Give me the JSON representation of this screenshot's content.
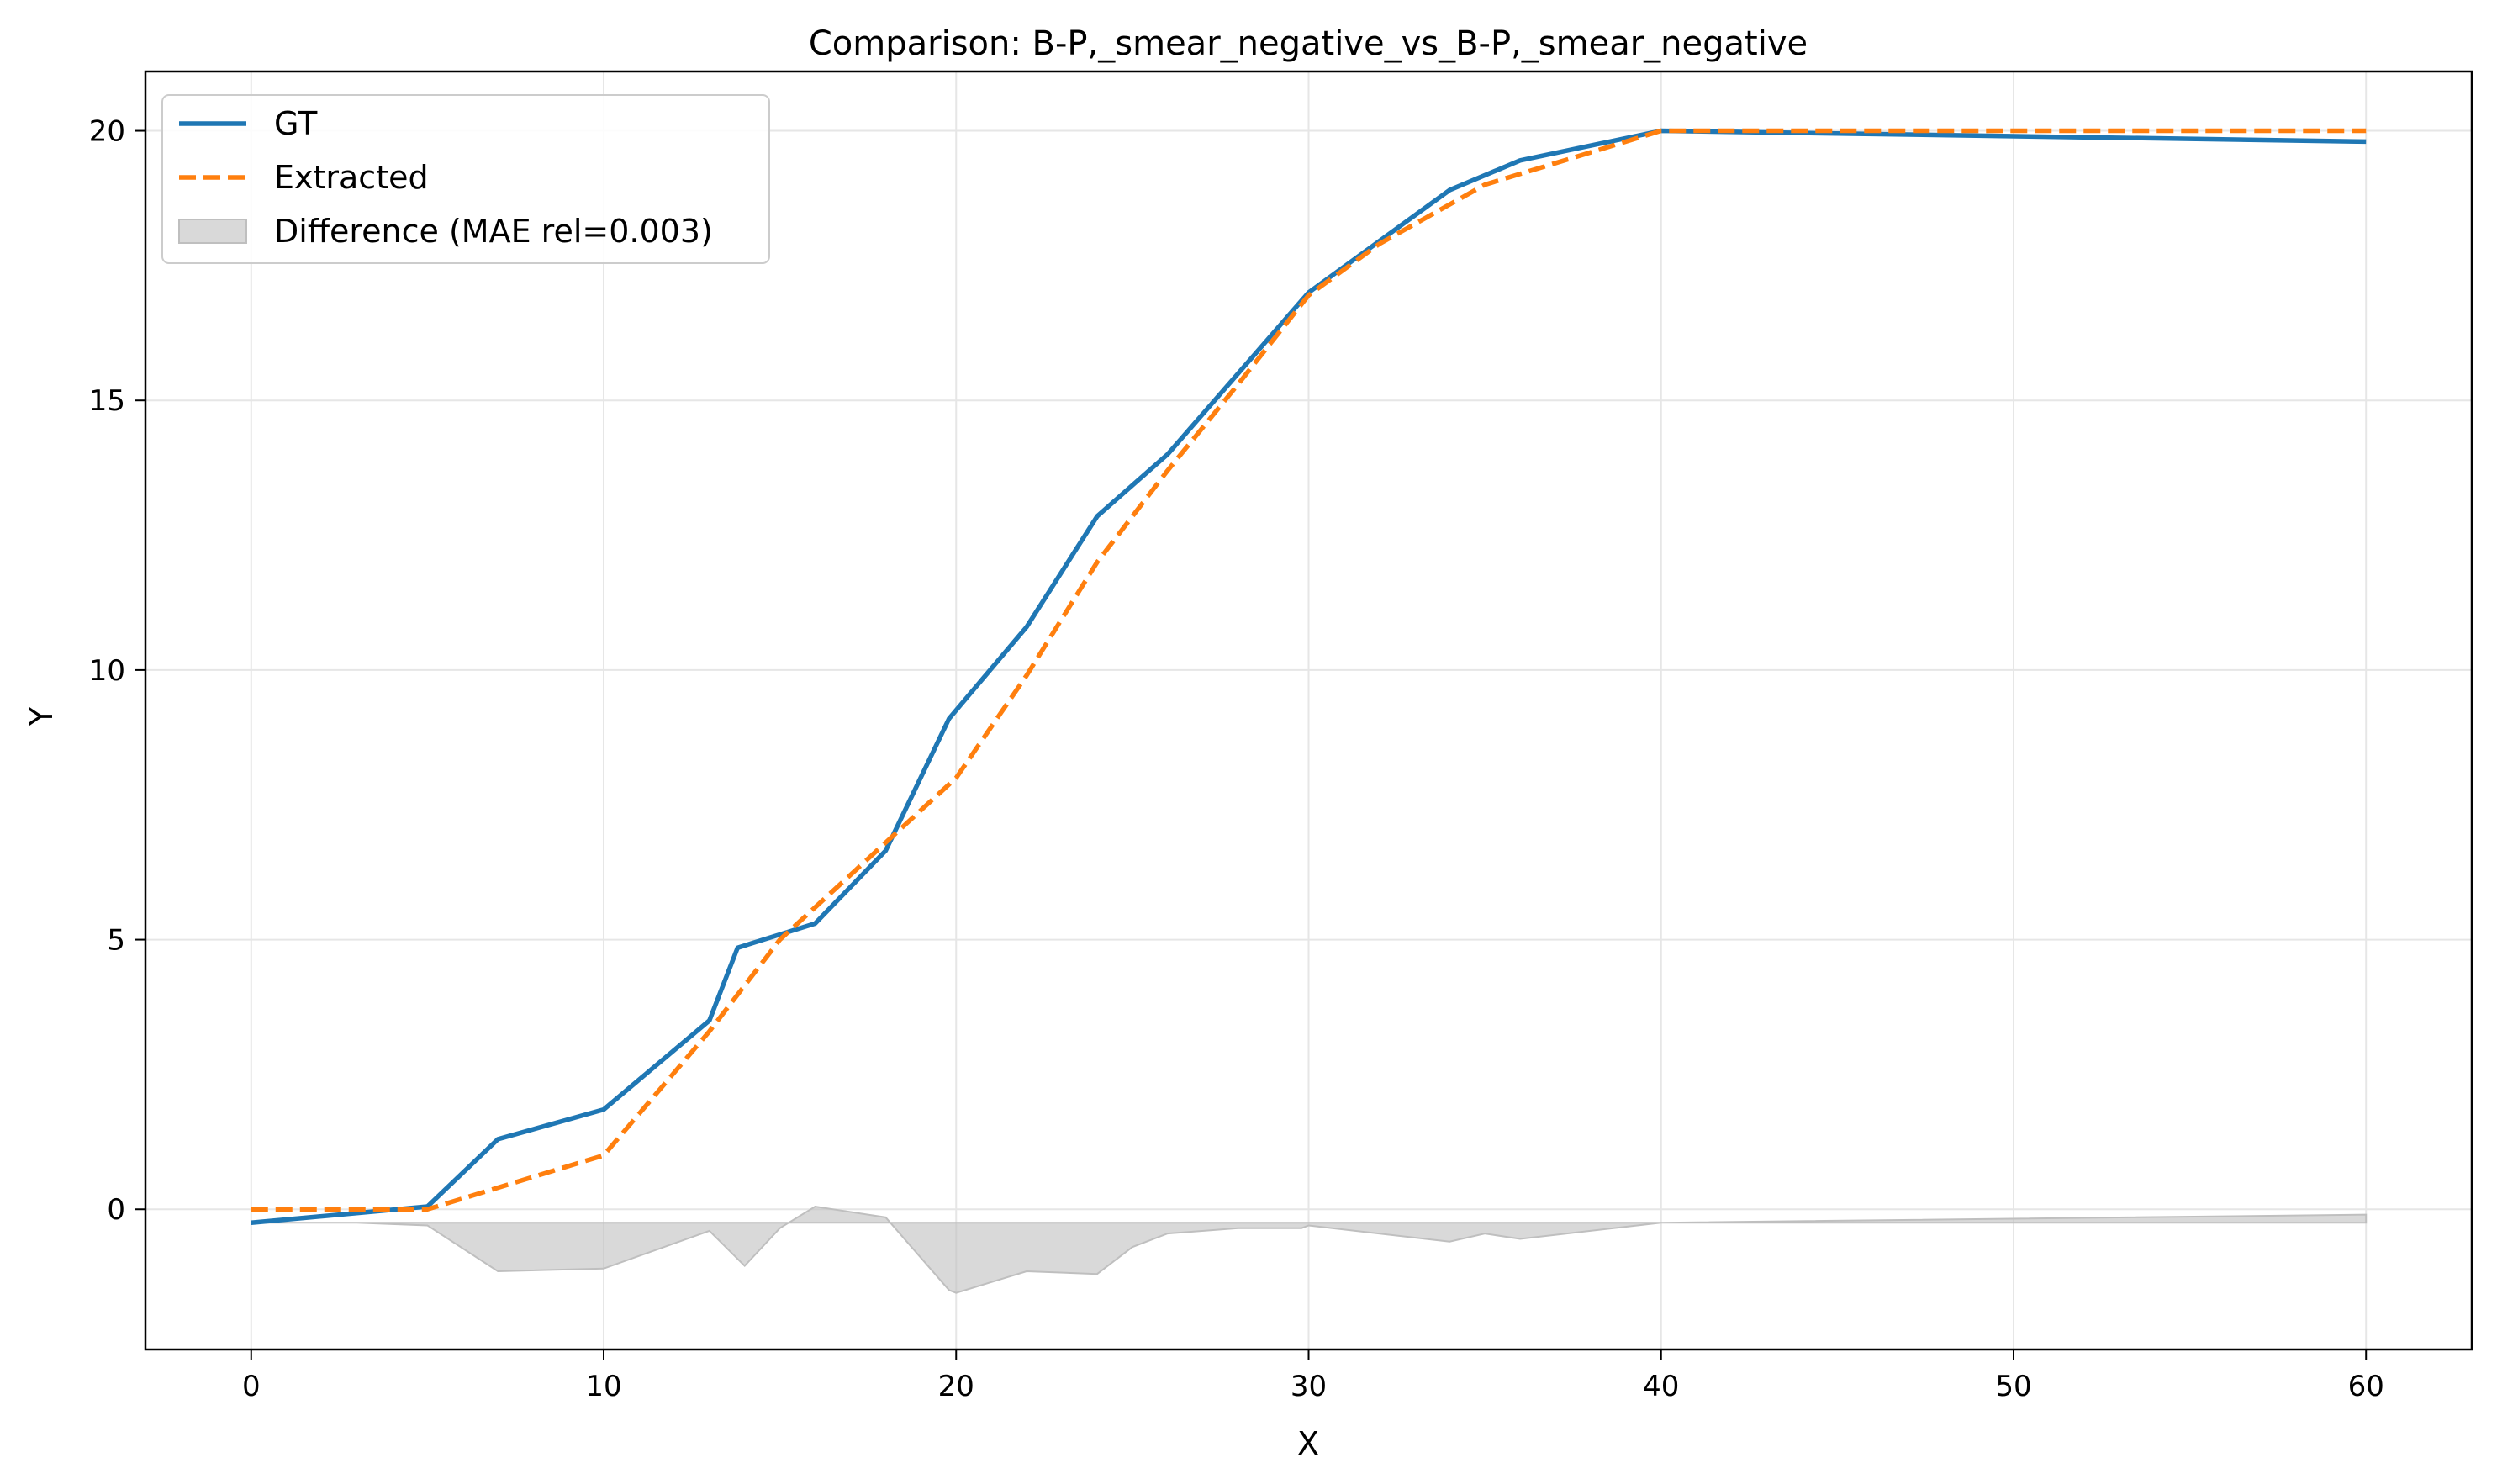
{
  "chart_data": {
    "type": "line",
    "title": "Comparison: B-P,_smear_negative_vs_B-P,_smear_negative",
    "xlabel": "X",
    "ylabel": "Y",
    "xlim": [
      -3,
      63
    ],
    "ylim": [
      -2.6,
      21.1
    ],
    "xticks": [
      0,
      10,
      20,
      30,
      40,
      50,
      60
    ],
    "yticks": [
      0,
      5,
      10,
      15,
      20
    ],
    "grid": true,
    "legend_position": "upper-left",
    "series": [
      {
        "name": "GT",
        "color": "#1f77b4",
        "style": "solid",
        "x": [
          0,
          5,
          7,
          10,
          13,
          13.8,
          16,
          18,
          19.8,
          22,
          24,
          26,
          28,
          30,
          32,
          34,
          36,
          40,
          60
        ],
        "y": [
          -0.25,
          0.05,
          1.3,
          1.85,
          3.5,
          4.85,
          5.3,
          6.65,
          9.1,
          10.8,
          12.85,
          14.0,
          15.5,
          17.0,
          17.95,
          18.9,
          19.45,
          20.0,
          19.8
        ]
      },
      {
        "name": "Extracted",
        "color": "#ff7f0e",
        "style": "dashed",
        "x": [
          0,
          5,
          10,
          13,
          15,
          16,
          18,
          20,
          22,
          24,
          26,
          28,
          30,
          32,
          35,
          40,
          60
        ],
        "y": [
          0.0,
          0.0,
          1.0,
          3.3,
          5.0,
          5.6,
          6.8,
          8.0,
          9.9,
          12.0,
          13.7,
          15.3,
          16.95,
          17.9,
          19.0,
          20.0,
          20.0
        ]
      }
    ],
    "difference": {
      "name": "Difference (MAE rel=0.003)",
      "color": "#bfbfbf",
      "baseline": -0.25,
      "x": [
        0,
        3,
        5,
        7,
        10,
        13,
        14,
        15,
        16,
        18,
        19.8,
        20,
        22,
        24,
        25,
        26,
        28,
        29.8,
        30,
        34,
        35,
        36,
        40,
        60
      ],
      "y": [
        -0.25,
        -0.25,
        -0.3,
        -1.15,
        -1.1,
        -0.4,
        -1.05,
        -0.35,
        0.05,
        -0.15,
        -1.5,
        -1.55,
        -1.15,
        -1.2,
        -0.7,
        -0.45,
        -0.35,
        -0.35,
        -0.3,
        -0.6,
        -0.45,
        -0.55,
        -0.25,
        -0.1
      ]
    }
  }
}
